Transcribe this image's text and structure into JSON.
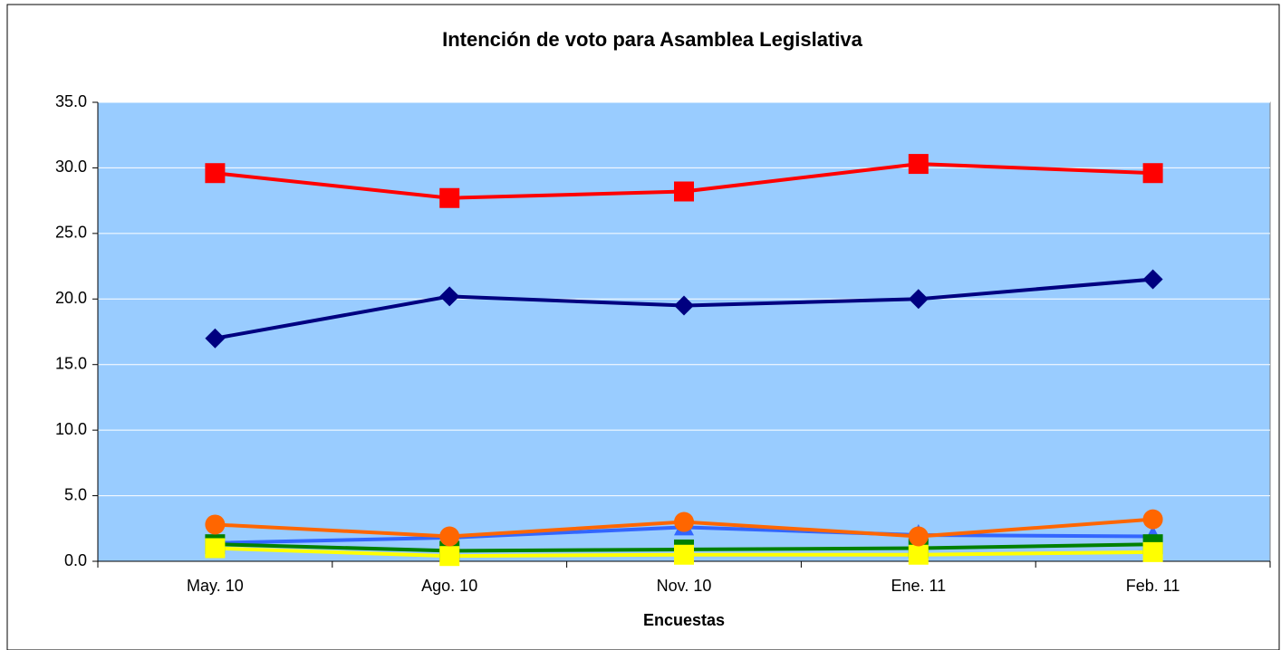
{
  "chart_data": {
    "type": "line",
    "title": "Intención de voto para Asamblea Legislativa",
    "x_label": "Encuestas",
    "categories": [
      "May. 10",
      "Ago. 10",
      "Nov. 10",
      "Ene. 11",
      "Feb. 11"
    ],
    "series": [
      {
        "color": "#ff0000",
        "marker": "square",
        "values": [
          29.6,
          27.7,
          28.2,
          30.3,
          29.6
        ]
      },
      {
        "color": "#000080",
        "marker": "diamond",
        "values": [
          17.0,
          20.2,
          19.5,
          20.0,
          21.5
        ]
      },
      {
        "color": "#3366ff",
        "marker": "triangle",
        "values": [
          1.4,
          1.8,
          2.6,
          2.0,
          1.9
        ]
      },
      {
        "color": "#008000",
        "marker": "square",
        "values": [
          1.3,
          0.8,
          0.9,
          1.0,
          1.3
        ]
      },
      {
        "color": "#ffff00",
        "marker": "square",
        "values": [
          1.0,
          0.4,
          0.5,
          0.5,
          0.7
        ]
      },
      {
        "color": "#ff6600",
        "marker": "circle",
        "values": [
          2.8,
          1.9,
          3.0,
          1.9,
          3.2
        ]
      }
    ],
    "ylim": [
      0,
      35
    ],
    "yticks": [
      {
        "value": 0,
        "label": "0.0"
      },
      {
        "value": 5,
        "label": "5.0"
      },
      {
        "value": 10,
        "label": "10.0"
      },
      {
        "value": 15,
        "label": "15.0"
      },
      {
        "value": 20,
        "label": "20.0"
      },
      {
        "value": 25,
        "label": "25.0"
      },
      {
        "value": 30,
        "label": "30.0"
      },
      {
        "value": 35,
        "label": "35.0"
      }
    ],
    "grid": true,
    "plot_background": "#99ccff"
  }
}
